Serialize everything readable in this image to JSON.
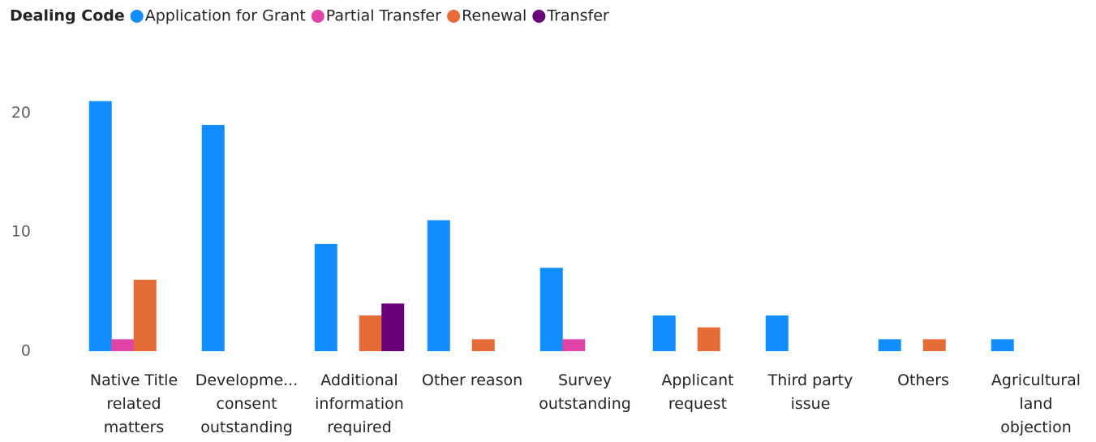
{
  "chart_data": {
    "type": "bar",
    "legend_title": "Dealing Code",
    "categories": [
      "Native Title related matters",
      "Developme... consent outstanding",
      "Additional information required",
      "Other reason",
      "Survey outstanding",
      "Applicant request",
      "Third party issue",
      "Others",
      "Agricultural land objection"
    ],
    "series": [
      {
        "name": "Application for Grant",
        "color": "#118dff",
        "values": [
          21,
          19,
          9,
          11,
          7,
          3,
          3,
          1,
          1
        ]
      },
      {
        "name": "Partial Transfer",
        "color": "#e044a7",
        "values": [
          1,
          null,
          null,
          null,
          1,
          null,
          null,
          null,
          null
        ]
      },
      {
        "name": "Renewal",
        "color": "#e66c37",
        "values": [
          6,
          null,
          3,
          1,
          null,
          2,
          null,
          1,
          null
        ]
      },
      {
        "name": "Transfer",
        "color": "#6b007b",
        "values": [
          null,
          null,
          4,
          null,
          null,
          null,
          null,
          null,
          null
        ]
      }
    ],
    "ylim": [
      0,
      22
    ],
    "yticks": [
      0,
      10,
      20
    ],
    "grid": false,
    "legend": "top-left"
  }
}
